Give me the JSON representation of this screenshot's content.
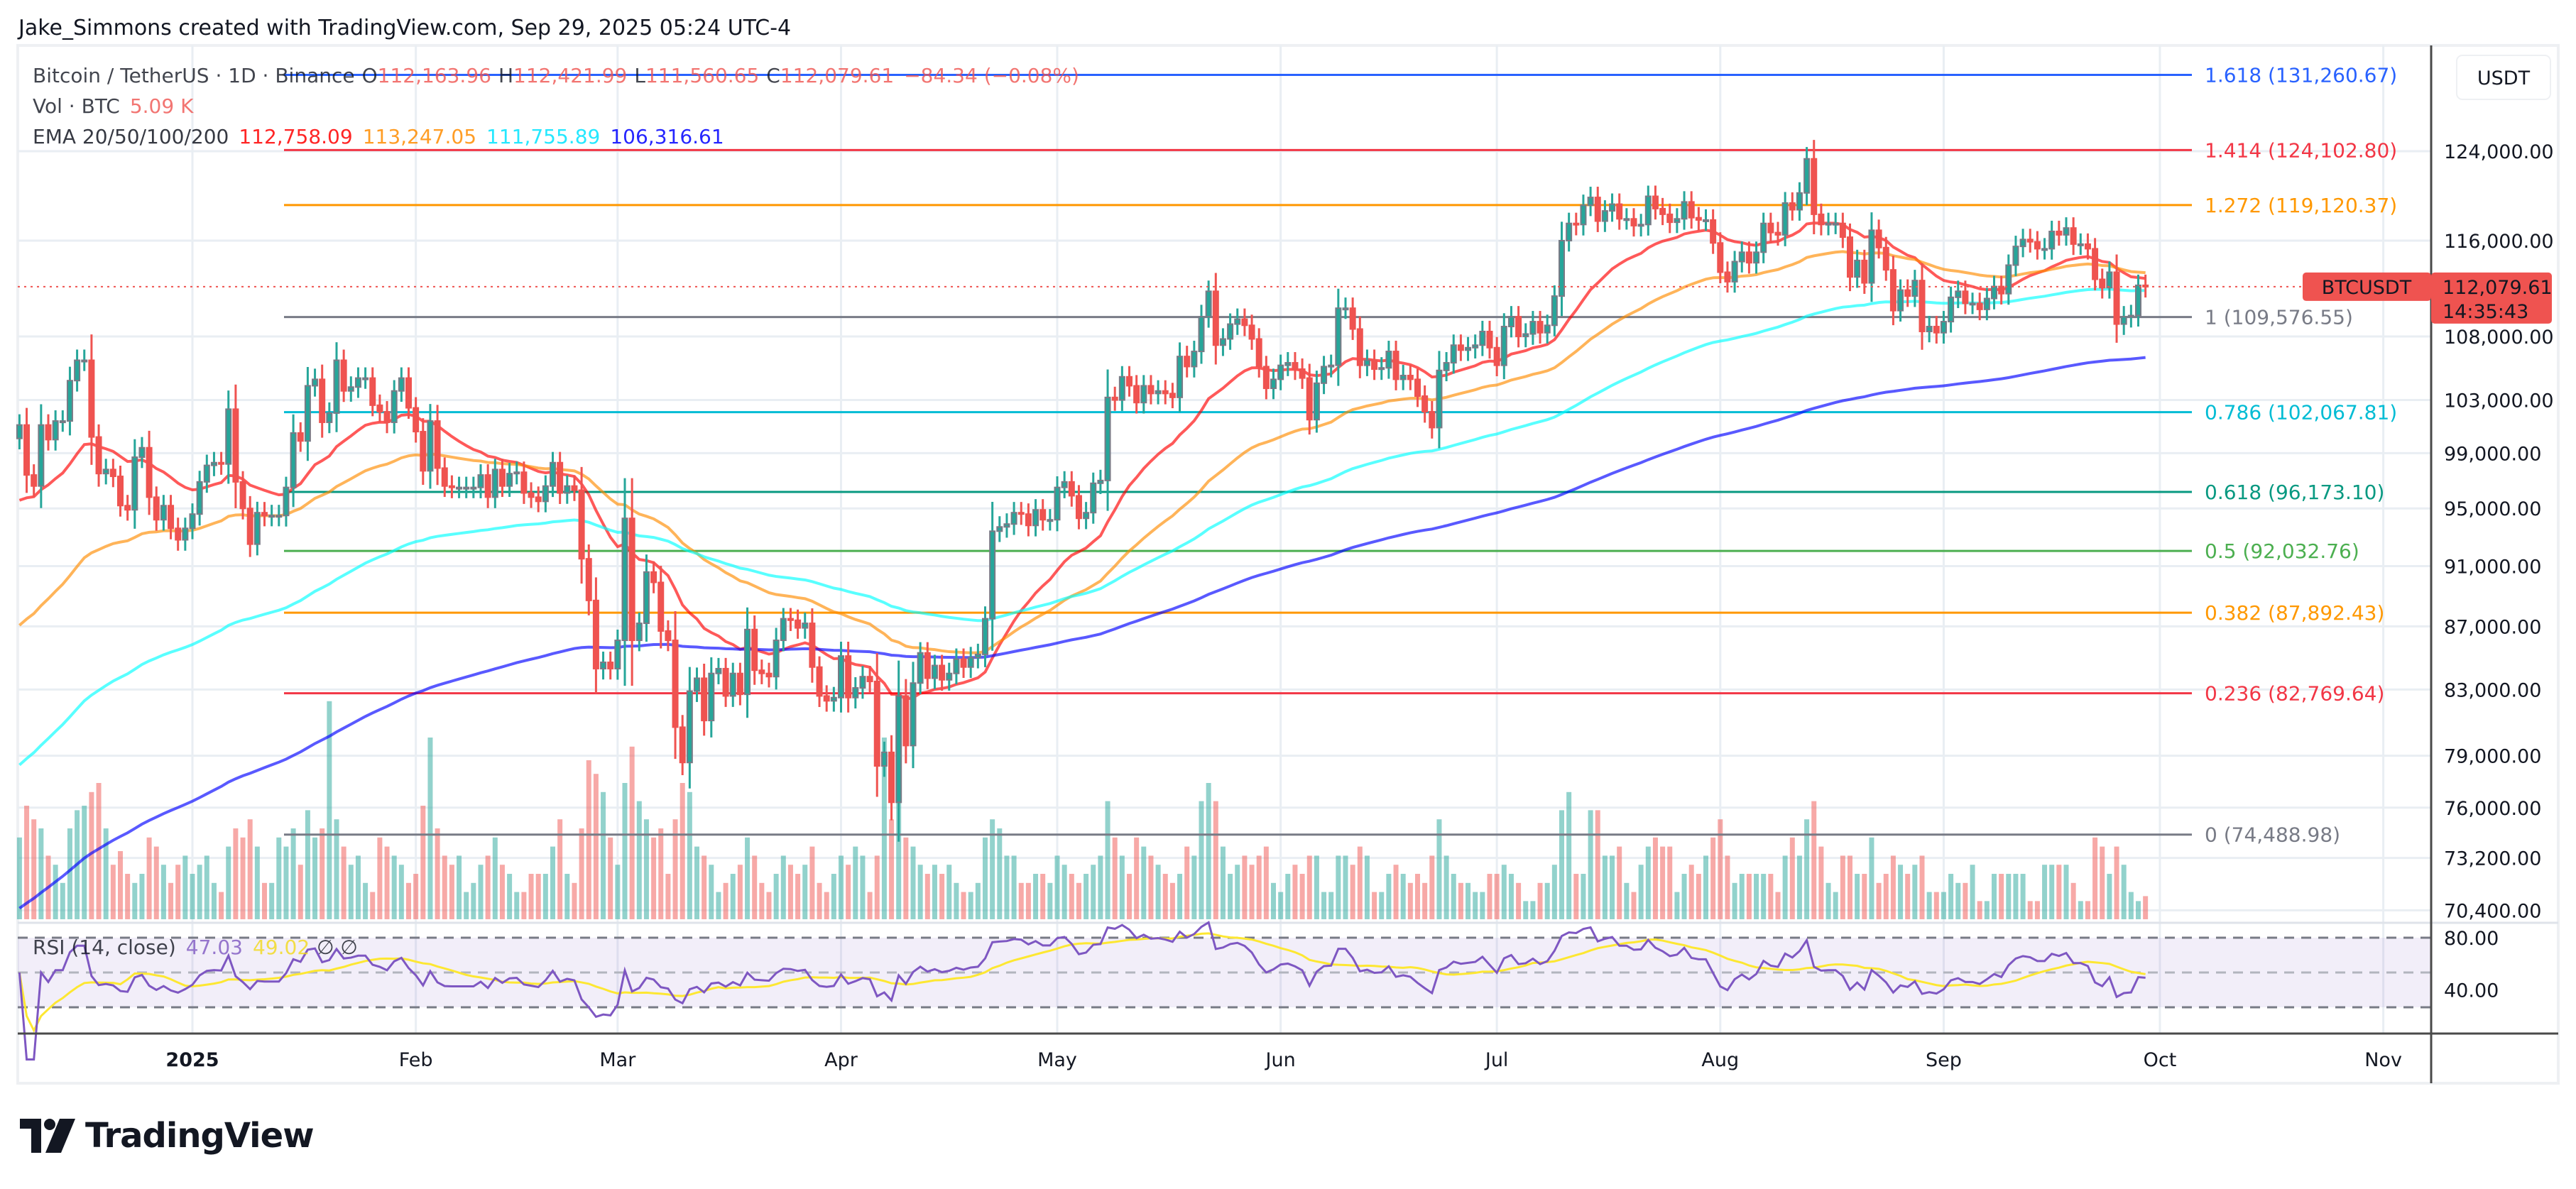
{
  "attribution": "Jake_Simmons created with TradingView.com, Sep 29, 2025 05:24 UTC-4",
  "legend": {
    "symbol": "Bitcoin / TetherUS · 1D · Binance",
    "open_label": "O",
    "open": "112,163.96",
    "high_label": "H",
    "high": "112,421.99",
    "low_label": "L",
    "low": "111,560.65",
    "close_label": "C",
    "close": "112,079.61",
    "change": "−84.34 (−0.08%)",
    "vol_label": "Vol · BTC",
    "vol_value": "5.09 K",
    "ema_label": "EMA 20/50/100/200",
    "ema_values": [
      "112,758.09",
      "113,247.05",
      "111,755.89",
      "106,316.61"
    ],
    "rsi_label": "RSI (14, close)",
    "rsi_value": "47.03",
    "rsi_ma_value": "49.02",
    "rsi_extra": "∅  ∅"
  },
  "currency_button": "USDT",
  "price_tag": {
    "symbol": "BTCUSDT",
    "price": "112,079.61",
    "countdown": "14:35:43"
  },
  "logo_text": "TradingView",
  "colors": {
    "up": "#26a69a",
    "down": "#ef5350",
    "border": "#787b86",
    "ema20": "#ff0000",
    "ema50": "#ff8c00",
    "ema100": "#00ffff",
    "ema200": "#0000ff",
    "rsi": "#7e57c2",
    "rsi_ma": "#fde732",
    "price_line": "#ef5350"
  },
  "chart_data": {
    "type": "candlestick",
    "scale": "log",
    "grid": true,
    "y_ticks": [
      "124,000.00",
      "116,000.00",
      "108,000.00",
      "103,000.00",
      "99,000.00",
      "95,000.00",
      "91,000.00",
      "87,000.00",
      "83,000.00",
      "79,000.00",
      "76,000.00",
      "73,200.00",
      "70,400.00"
    ],
    "x_ticks": [
      {
        "label": "2025",
        "date": "2025-01-01",
        "bold": true
      },
      {
        "label": "Feb",
        "date": "2025-02-01"
      },
      {
        "label": "Mar",
        "date": "2025-03-01"
      },
      {
        "label": "Apr",
        "date": "2025-04-01"
      },
      {
        "label": "May",
        "date": "2025-05-01"
      },
      {
        "label": "Jun",
        "date": "2025-06-01"
      },
      {
        "label": "Jul",
        "date": "2025-07-01"
      },
      {
        "label": "Aug",
        "date": "2025-08-01"
      },
      {
        "label": "Sep",
        "date": "2025-09-01"
      },
      {
        "label": "Oct",
        "date": "2025-10-01"
      },
      {
        "label": "Nov",
        "date": "2025-11-01"
      }
    ],
    "rsi_ticks": [
      "80.00",
      "40.00"
    ],
    "rsi_bands": {
      "upper": 70,
      "middle": 50,
      "lower": 30
    },
    "ema_start": {
      "ema20": 95000,
      "ema50": 86500,
      "ema100": 78000,
      "ema200": 70200
    },
    "fib_levels": [
      {
        "ratio": "1.618",
        "price": 131260.67,
        "label": "1.618 (131,260.67)",
        "color": "#2962ff"
      },
      {
        "ratio": "1.414",
        "price": 124102.8,
        "label": "1.414 (124,102.80)",
        "color": "#f23645"
      },
      {
        "ratio": "1.272",
        "price": 119120.37,
        "label": "1.272 (119,120.37)",
        "color": "#ff9800"
      },
      {
        "ratio": "1",
        "price": 109576.55,
        "label": "1 (109,576.55)",
        "color": "#787b86"
      },
      {
        "ratio": "0.786",
        "price": 102067.81,
        "label": "0.786 (102,067.81)",
        "color": "#00bcd4"
      },
      {
        "ratio": "0.618",
        "price": 96173.1,
        "label": "0.618 (96,173.10)",
        "color": "#089981"
      },
      {
        "ratio": "0.5",
        "price": 92032.76,
        "label": "0.5 (92,032.76)",
        "color": "#4caf50"
      },
      {
        "ratio": "0.382",
        "price": 87892.43,
        "label": "0.382 (87,892.43)",
        "color": "#ff9800"
      },
      {
        "ratio": "0.236",
        "price": 82769.64,
        "label": "0.236 (82,769.64)",
        "color": "#f23645"
      },
      {
        "ratio": "0",
        "price": 74488.98,
        "label": "0 (74,488.98)",
        "color": "#787b86"
      }
    ],
    "last_price": 112079.61,
    "months": [
      {
        "month": "2024-12",
        "first_day": 8,
        "close": [
          101100,
          97400,
          96600,
          101100,
          100000,
          101400,
          101400,
          104500,
          106100,
          106100,
          100200,
          97500,
          97800,
          97300,
          95200,
          94900,
          98700,
          99400,
          95800,
          94200,
          95200,
          93600,
          92800,
          93600
        ],
        "volume_k": [
          18,
          25,
          22,
          20,
          14,
          12,
          8,
          20,
          24,
          25,
          28,
          30,
          20,
          12,
          15,
          10,
          8,
          10,
          18,
          16,
          12,
          8,
          12,
          14
        ]
      },
      {
        "month": "2025-01",
        "first_day": 1,
        "close": [
          94600,
          96900,
          98100,
          98300,
          98200,
          102300,
          96900,
          95000,
          92500,
          94700,
          94500,
          94500,
          94500,
          96500,
          100500,
          99900,
          104100,
          104600,
          101300,
          102000,
          106100,
          103700,
          104000,
          104700,
          104700,
          102600,
          102100,
          101300,
          103700,
          104700,
          102400
        ],
        "volume_k": [
          10,
          12,
          14,
          8,
          6,
          16,
          20,
          18,
          22,
          16,
          8,
          8,
          18,
          16,
          20,
          12,
          24,
          18,
          20,
          48,
          22,
          16,
          12,
          14,
          8,
          6,
          18,
          16,
          14,
          12,
          8
        ]
      },
      {
        "month": "2025-02",
        "first_day": 1,
        "close": [
          100600,
          97700,
          101400,
          97900,
          96600,
          96500,
          96500,
          96500,
          96500,
          97400,
          95800,
          97800,
          96600,
          97500,
          97600,
          96100,
          95800,
          95500,
          96600,
          98300,
          96100,
          96600,
          96300,
          91500,
          88700,
          84300,
          84700,
          84300
        ],
        "volume_k": [
          10,
          25,
          40,
          20,
          14,
          12,
          14,
          6,
          8,
          12,
          14,
          18,
          12,
          10,
          6,
          6,
          10,
          10,
          10,
          16,
          22,
          10,
          8,
          20,
          35,
          32,
          28,
          18
        ]
      },
      {
        "month": "2025-03",
        "first_day": 1,
        "close": [
          86100,
          94300,
          86100,
          87200,
          90600,
          89900,
          86700,
          86100,
          80700,
          78600,
          82900,
          83700,
          81100,
          84000,
          84300,
          82600,
          84000,
          82700,
          86800,
          84200,
          84000,
          83800,
          86100,
          87500,
          87400,
          86900,
          87200,
          84400,
          82600,
          82300,
          82500
        ],
        "volume_k": [
          12,
          30,
          38,
          26,
          22,
          18,
          20,
          10,
          22,
          30,
          28,
          16,
          14,
          12,
          6,
          8,
          10,
          12,
          18,
          14,
          8,
          6,
          10,
          14,
          12,
          10,
          12,
          16,
          8,
          6,
          10
        ]
      },
      {
        "month": "2025-04",
        "first_day": 1,
        "close": [
          85100,
          82500,
          83100,
          83800,
          83500,
          78400,
          79200,
          76300,
          82600,
          79600,
          83400,
          85300,
          83700,
          84500,
          83600,
          84000,
          84900,
          84400,
          85000,
          85200,
          87500,
          93400,
          93700,
          93900,
          94700,
          94600,
          93800,
          94900,
          94200,
          94200
        ],
        "volume_k": [
          14,
          12,
          16,
          14,
          6,
          14,
          40,
          22,
          32,
          18,
          16,
          12,
          10,
          12,
          10,
          12,
          8,
          6,
          6,
          8,
          18,
          22,
          20,
          14,
          14,
          8,
          8,
          10,
          10,
          8
        ]
      },
      {
        "month": "2025-05",
        "first_day": 1,
        "close": [
          96500,
          96900,
          95900,
          94300,
          94700,
          96800,
          97000,
          103200,
          103000,
          104800,
          104100,
          102800,
          104100,
          103500,
          103700,
          103500,
          103200,
          106400,
          105600,
          106800,
          109600,
          111700,
          107300,
          107800,
          109000,
          109400,
          108900,
          107800,
          105600,
          103900,
          104600
        ],
        "volume_k": [
          14,
          12,
          10,
          8,
          10,
          12,
          14,
          26,
          18,
          14,
          10,
          18,
          16,
          14,
          12,
          10,
          8,
          10,
          16,
          14,
          26,
          30,
          26,
          16,
          10,
          12,
          14,
          12,
          14,
          16,
          8
        ]
      },
      {
        "month": "2025-06",
        "first_day": 1,
        "close": [
          105700,
          105900,
          105400,
          104700,
          101500,
          104300,
          105600,
          105700,
          110300,
          110300,
          108600,
          105700,
          106100,
          105400,
          105500,
          106800,
          104600,
          104900,
          104600,
          103300,
          102100,
          100900,
          105300,
          105900,
          107300,
          106900,
          107100,
          107300,
          108400,
          107100
        ],
        "volume_k": [
          6,
          10,
          12,
          10,
          14,
          14,
          6,
          6,
          14,
          14,
          12,
          16,
          14,
          6,
          6,
          10,
          12,
          10,
          8,
          10,
          8,
          14,
          22,
          14,
          10,
          8,
          8,
          6,
          6,
          10
        ]
      },
      {
        "month": "2025-07",
        "first_day": 1,
        "close": [
          105700,
          108800,
          109600,
          108000,
          108200,
          109200,
          108300,
          108900,
          111300,
          116000,
          117500,
          117400,
          119100,
          119800,
          117700,
          118600,
          119200,
          117900,
          117900,
          117300,
          117400,
          119900,
          118800,
          118300,
          117600,
          117900,
          119400,
          118000,
          117800,
          117800,
          115800
        ],
        "volume_k": [
          10,
          12,
          10,
          8,
          4,
          4,
          8,
          8,
          12,
          24,
          28,
          10,
          10,
          24,
          24,
          14,
          14,
          16,
          8,
          6,
          12,
          16,
          18,
          16,
          16,
          6,
          10,
          12,
          10,
          14,
          18
        ]
      },
      {
        "month": "2025-08",
        "first_day": 1,
        "close": [
          113300,
          112500,
          114200,
          115000,
          114100,
          115000,
          117500,
          116700,
          116500,
          119300,
          118700,
          120200,
          123300,
          118300,
          117400,
          117500,
          117500,
          116300,
          112900,
          114300,
          112400,
          116900,
          115400,
          113500,
          110100,
          111800,
          111300,
          112600,
          108400,
          108800,
          108300
        ],
        "volume_k": [
          22,
          14,
          8,
          10,
          10,
          10,
          10,
          10,
          6,
          14,
          18,
          14,
          22,
          26,
          16,
          8,
          6,
          14,
          14,
          10,
          10,
          18,
          8,
          10,
          14,
          12,
          10,
          12,
          14,
          6,
          6
        ]
      },
      {
        "month": "2025-09",
        "first_day": 1,
        "close": [
          109200,
          111200,
          111700,
          110700,
          110700,
          110200,
          111100,
          112100,
          111500,
          113900,
          115500,
          116100,
          115900,
          115300,
          115300,
          116800,
          116500,
          117100,
          115700,
          115700,
          115300,
          112700,
          112000,
          113300,
          109000,
          109600,
          109700,
          112200,
          112079.61
        ],
        "volume_k": [
          6,
          10,
          8,
          8,
          12,
          4,
          4,
          10,
          10,
          10,
          10,
          10,
          4,
          4,
          12,
          12,
          12,
          12,
          8,
          4,
          4,
          18,
          16,
          10,
          16,
          12,
          6,
          4,
          5.09
        ]
      }
    ]
  }
}
